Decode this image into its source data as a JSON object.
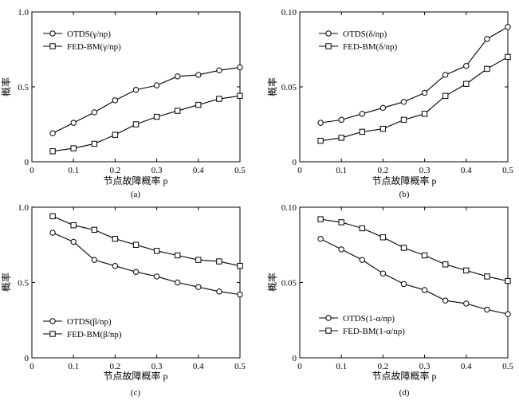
{
  "chart_data": [
    {
      "type": "line",
      "panel": "(a)",
      "title": "",
      "xlabel": "节点故障概率 p",
      "ylabel": "概率",
      "xlim": [
        0,
        0.5
      ],
      "ylim": [
        0,
        1.0
      ],
      "x_ticks": [
        "0",
        "0.1",
        "0.2",
        "0.3",
        "0.4",
        "0.5"
      ],
      "y_ticks": [
        "0",
        "0.5",
        "1.0"
      ],
      "x_tick_values": [
        0,
        0.1,
        0.2,
        0.3,
        0.4,
        0.5
      ],
      "y_tick_values": [
        0,
        0.5,
        1.0
      ],
      "legend_position": "top-left",
      "x": [
        0.05,
        0.1,
        0.15,
        0.2,
        0.25,
        0.3,
        0.35,
        0.4,
        0.45,
        0.5
      ],
      "series": [
        {
          "name": "OTDS(γ/np)",
          "marker": "circle",
          "values": [
            0.19,
            0.26,
            0.33,
            0.41,
            0.48,
            0.51,
            0.57,
            0.58,
            0.61,
            0.63
          ]
        },
        {
          "name": "FED-BM(γ/np)",
          "marker": "square",
          "values": [
            0.07,
            0.09,
            0.12,
            0.18,
            0.25,
            0.3,
            0.34,
            0.38,
            0.42,
            0.44
          ]
        }
      ]
    },
    {
      "type": "line",
      "panel": "(b)",
      "title": "",
      "xlabel": "节点故障概率 p",
      "ylabel": "概率",
      "xlim": [
        0,
        0.5
      ],
      "ylim": [
        0,
        0.1
      ],
      "x_ticks": [
        "0",
        "0.1",
        "0.2",
        "0.3",
        "0.4",
        "0.5"
      ],
      "y_ticks": [
        "0",
        "0.05",
        "0.10"
      ],
      "x_tick_values": [
        0,
        0.1,
        0.2,
        0.3,
        0.4,
        0.5
      ],
      "y_tick_values": [
        0,
        0.05,
        0.1
      ],
      "legend_position": "top-left",
      "x": [
        0.05,
        0.1,
        0.15,
        0.2,
        0.25,
        0.3,
        0.35,
        0.4,
        0.45,
        0.5
      ],
      "series": [
        {
          "name": "OTDS(δ/np)",
          "marker": "circle",
          "values": [
            0.026,
            0.028,
            0.032,
            0.036,
            0.04,
            0.046,
            0.058,
            0.064,
            0.082,
            0.09
          ]
        },
        {
          "name": "FED-BM(δ/np)",
          "marker": "square",
          "values": [
            0.014,
            0.016,
            0.02,
            0.022,
            0.028,
            0.032,
            0.044,
            0.052,
            0.062,
            0.07
          ]
        }
      ]
    },
    {
      "type": "line",
      "panel": "(c)",
      "title": "",
      "xlabel": "节点故障概率 p",
      "ylabel": "概率",
      "xlim": [
        0,
        0.5
      ],
      "ylim": [
        0,
        1.0
      ],
      "x_ticks": [
        "0",
        "0.1",
        "0.2",
        "0.3",
        "0.4",
        "0.5"
      ],
      "y_ticks": [
        "0",
        "0.5",
        "1.0"
      ],
      "x_tick_values": [
        0,
        0.1,
        0.2,
        0.3,
        0.4,
        0.5
      ],
      "y_tick_values": [
        0,
        0.5,
        1.0
      ],
      "legend_position": "lower-left",
      "x": [
        0.05,
        0.1,
        0.15,
        0.2,
        0.25,
        0.3,
        0.35,
        0.4,
        0.45,
        0.5
      ],
      "series": [
        {
          "name": "OTDS(β/np)",
          "marker": "circle",
          "values": [
            0.83,
            0.77,
            0.65,
            0.61,
            0.57,
            0.54,
            0.5,
            0.47,
            0.44,
            0.42
          ]
        },
        {
          "name": "FED-BM(β/np)",
          "marker": "square",
          "values": [
            0.94,
            0.88,
            0.85,
            0.79,
            0.75,
            0.71,
            0.68,
            0.65,
            0.64,
            0.61
          ]
        }
      ]
    },
    {
      "type": "line",
      "panel": "(d)",
      "title": "",
      "xlabel": "节点故障概率 p",
      "ylabel": "概率",
      "xlim": [
        0,
        0.5
      ],
      "ylim": [
        0,
        0.1
      ],
      "x_ticks": [
        "0",
        "0.1",
        "0.2",
        "0.3",
        "0.4",
        "0.5"
      ],
      "y_ticks": [
        "0",
        "0.05",
        "0.10"
      ],
      "x_tick_values": [
        0,
        0.1,
        0.2,
        0.3,
        0.4,
        0.5
      ],
      "y_tick_values": [
        0,
        0.05,
        0.1
      ],
      "legend_position": "lower-left",
      "x": [
        0.05,
        0.1,
        0.15,
        0.2,
        0.25,
        0.3,
        0.35,
        0.4,
        0.45,
        0.5
      ],
      "series": [
        {
          "name": "OTDS(1-α/np)",
          "marker": "circle",
          "values": [
            0.079,
            0.072,
            0.065,
            0.056,
            0.049,
            0.045,
            0.038,
            0.036,
            0.032,
            0.029
          ]
        },
        {
          "name": "FED-BM(1-α/np)",
          "marker": "square",
          "values": [
            0.092,
            0.09,
            0.086,
            0.08,
            0.073,
            0.068,
            0.062,
            0.058,
            0.054,
            0.051
          ]
        }
      ]
    }
  ]
}
